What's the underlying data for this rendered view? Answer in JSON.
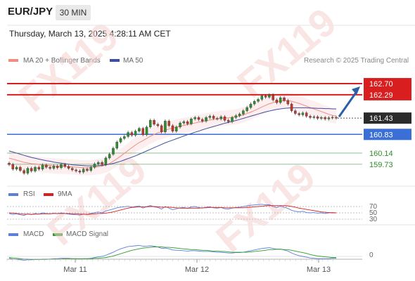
{
  "header": {
    "pair": "EUR/JPY",
    "timeframe": "30 MIN"
  },
  "timestamp": "Thursday, March 13, 2025 4:28:11 AM CET",
  "watermark": "FX119",
  "research_credit": "Research © 2025 Trading Central",
  "legend": {
    "ma": {
      "label": "MA 20 + Bollinger Bands",
      "color": "#f28b82"
    },
    "ma50": {
      "label": "MA 50",
      "color": "#3f4f9f"
    },
    "rsi": {
      "label": "RSI",
      "color": "#5b7fdb"
    },
    "rsi_ma": {
      "label": "9MA",
      "color": "#d92020"
    },
    "macd": {
      "label": "MACD",
      "color": "#5b7fdb"
    },
    "macd_signal": {
      "label": "MACD Signal",
      "color": "#2e9e2e"
    }
  },
  "chart_data": [
    {
      "type": "candlestick",
      "panel": "price",
      "ylim": [
        159.0,
        163.4
      ],
      "x_ticks": [
        "Mar 11",
        "Mar 12",
        "Mar 13"
      ],
      "current_price": 161.43,
      "levels": [
        {
          "value": 162.7,
          "label": "162.70",
          "color": "#d81e1e",
          "kind": "resistance"
        },
        {
          "value": 162.29,
          "label": "162.29",
          "color": "#d81e1e",
          "kind": "resistance"
        },
        {
          "value": 161.43,
          "label": "161.43",
          "color": "#333333",
          "kind": "last"
        },
        {
          "value": 160.83,
          "label": "160.83",
          "color": "#3a6fd8",
          "kind": "pivot"
        },
        {
          "value": 160.14,
          "label": "160.14",
          "color": "#2e8b2e",
          "kind": "support"
        },
        {
          "value": 159.73,
          "label": "159.73",
          "color": "#2e8b2e",
          "kind": "support"
        }
      ],
      "close": [
        159.72,
        159.55,
        159.62,
        159.5,
        159.4,
        159.58,
        159.48,
        159.62,
        159.55,
        159.7,
        159.62,
        159.58,
        159.66,
        159.6,
        159.72,
        159.65,
        159.58,
        159.52,
        159.48,
        159.44,
        159.55,
        159.5,
        159.62,
        159.74,
        159.8,
        159.72,
        159.96,
        160.1,
        160.32,
        160.55,
        160.68,
        160.75,
        160.9,
        160.8,
        160.95,
        161.05,
        160.82,
        161.1,
        161.35,
        161.2,
        161.15,
        160.92,
        161.32,
        161.15,
        160.95,
        161.1,
        161.25,
        161.3,
        161.22,
        161.4,
        161.45,
        161.38,
        161.32,
        161.45,
        161.5,
        161.42,
        161.4,
        161.48,
        161.35,
        161.3,
        161.45,
        161.52,
        161.58,
        161.7,
        161.82,
        161.95,
        162.05,
        162.12,
        162.25,
        162.2,
        162.28,
        162.1,
        162.0,
        162.18,
        162.08,
        161.95,
        161.7,
        161.6,
        161.55,
        161.62,
        161.5,
        161.45,
        161.48,
        161.42,
        161.45,
        161.4,
        161.44,
        161.46,
        161.43
      ],
      "ma20": [
        159.95,
        159.92,
        159.88,
        159.84,
        159.8,
        159.78,
        159.75,
        159.74,
        159.72,
        159.7,
        159.69,
        159.68,
        159.67,
        159.66,
        159.66,
        159.65,
        159.64,
        159.63,
        159.62,
        159.61,
        159.6,
        159.6,
        159.61,
        159.62,
        159.64,
        159.66,
        159.7,
        159.76,
        159.84,
        159.93,
        160.03,
        160.13,
        160.24,
        160.34,
        160.44,
        160.53,
        160.6,
        160.68,
        160.76,
        160.83,
        160.89,
        160.93,
        160.98,
        161.03,
        161.06,
        161.1,
        161.13,
        161.16,
        161.19,
        161.22,
        161.25,
        161.28,
        161.3,
        161.33,
        161.36,
        161.38,
        161.4,
        161.42,
        161.43,
        161.44,
        161.46,
        161.48,
        161.51,
        161.55,
        161.6,
        161.65,
        161.71,
        161.77,
        161.84,
        161.9,
        161.96,
        162.0,
        162.03,
        162.06,
        162.07,
        162.07,
        162.05,
        162.01,
        161.97,
        161.92,
        161.87,
        161.82,
        161.77,
        161.72,
        161.67,
        161.62,
        161.57,
        161.53,
        161.5
      ],
      "ma50": [
        160.22,
        160.18,
        160.14,
        160.1,
        160.06,
        160.02,
        159.98,
        159.95,
        159.92,
        159.89,
        159.86,
        159.84,
        159.81,
        159.79,
        159.77,
        159.75,
        159.73,
        159.71,
        159.7,
        159.69,
        159.68,
        159.67,
        159.67,
        159.67,
        159.68,
        159.69,
        159.71,
        159.73,
        159.76,
        159.8,
        159.84,
        159.89,
        159.94,
        159.99,
        160.04,
        160.1,
        160.16,
        160.22,
        160.28,
        160.34,
        160.4,
        160.46,
        160.52,
        160.57,
        160.62,
        160.67,
        160.72,
        160.77,
        160.82,
        160.86,
        160.91,
        160.95,
        161.0,
        161.04,
        161.08,
        161.12,
        161.16,
        161.2,
        161.24,
        161.27,
        161.31,
        161.34,
        161.38,
        161.42,
        161.46,
        161.5,
        161.54,
        161.58,
        161.62,
        161.66,
        161.69,
        161.72,
        161.75,
        161.77,
        161.79,
        161.8,
        161.81,
        161.81,
        161.81,
        161.81,
        161.81,
        161.8,
        161.8,
        161.79,
        161.79,
        161.78,
        161.78,
        161.77,
        161.77
      ]
    },
    {
      "type": "line",
      "panel": "rsi",
      "levels": [
        70,
        50,
        30
      ],
      "ylim": [
        0,
        100
      ],
      "series": [
        {
          "name": "RSI",
          "values": [
            48,
            45,
            47,
            44,
            42,
            47,
            45,
            48,
            46,
            50,
            48,
            47,
            49,
            47,
            50,
            48,
            46,
            45,
            44,
            43,
            46,
            45,
            48,
            51,
            53,
            50,
            56,
            59,
            62,
            66,
            68,
            69,
            71,
            68,
            70,
            72,
            65,
            70,
            73,
            69,
            67,
            62,
            70,
            65,
            60,
            63,
            66,
            67,
            64,
            69,
            70,
            67,
            65,
            68,
            69,
            66,
            65,
            67,
            63,
            62,
            65,
            67,
            68,
            70,
            72,
            74,
            75,
            76,
            77,
            75,
            76,
            70,
            67,
            71,
            68,
            64,
            58,
            55,
            53,
            55,
            51,
            50,
            51,
            49,
            50,
            48,
            50,
            51,
            50
          ]
        },
        {
          "name": "9MA",
          "values": [
            50,
            49,
            48,
            47,
            46,
            46,
            45,
            46,
            46,
            47,
            47,
            47,
            48,
            48,
            48,
            48,
            48,
            47,
            47,
            46,
            46,
            45,
            46,
            47,
            48,
            48,
            49,
            51,
            53,
            56,
            59,
            62,
            65,
            67,
            68,
            69,
            69,
            69,
            70,
            70,
            69,
            68,
            68,
            68,
            67,
            66,
            65,
            65,
            65,
            65,
            65,
            65,
            66,
            66,
            67,
            67,
            67,
            67,
            66,
            66,
            66,
            66,
            66,
            66,
            67,
            68,
            69,
            70,
            71,
            72,
            73,
            73,
            73,
            73,
            73,
            72,
            70,
            68,
            65,
            63,
            61,
            59,
            57,
            55,
            53,
            52,
            51,
            50,
            50
          ]
        }
      ]
    },
    {
      "type": "line",
      "panel": "macd",
      "zero_label": "0",
      "series": [
        {
          "name": "MACD",
          "values": [
            -0.05,
            -0.07,
            -0.08,
            -0.09,
            -0.1,
            -0.09,
            -0.09,
            -0.08,
            -0.08,
            -0.07,
            -0.07,
            -0.07,
            -0.06,
            -0.06,
            -0.05,
            -0.05,
            -0.05,
            -0.06,
            -0.06,
            -0.07,
            -0.06,
            -0.06,
            -0.05,
            -0.03,
            -0.01,
            0.0,
            0.03,
            0.07,
            0.11,
            0.16,
            0.2,
            0.23,
            0.26,
            0.27,
            0.28,
            0.29,
            0.27,
            0.27,
            0.28,
            0.27,
            0.25,
            0.21,
            0.22,
            0.2,
            0.17,
            0.16,
            0.16,
            0.15,
            0.14,
            0.15,
            0.15,
            0.14,
            0.13,
            0.13,
            0.13,
            0.12,
            0.11,
            0.11,
            0.1,
            0.09,
            0.09,
            0.1,
            0.1,
            0.11,
            0.13,
            0.15,
            0.17,
            0.19,
            0.21,
            0.22,
            0.23,
            0.21,
            0.19,
            0.19,
            0.17,
            0.14,
            0.09,
            0.05,
            0.02,
            0.0,
            -0.02,
            -0.04,
            -0.05,
            -0.06,
            -0.06,
            -0.06,
            -0.06,
            -0.05,
            -0.05
          ]
        },
        {
          "name": "MACD Signal",
          "values": [
            -0.03,
            -0.04,
            -0.05,
            -0.06,
            -0.07,
            -0.07,
            -0.08,
            -0.08,
            -0.08,
            -0.08,
            -0.08,
            -0.07,
            -0.07,
            -0.07,
            -0.07,
            -0.06,
            -0.06,
            -0.06,
            -0.06,
            -0.06,
            -0.06,
            -0.06,
            -0.06,
            -0.05,
            -0.05,
            -0.04,
            -0.03,
            -0.01,
            0.01,
            0.04,
            0.07,
            0.1,
            0.13,
            0.16,
            0.18,
            0.2,
            0.22,
            0.23,
            0.24,
            0.25,
            0.25,
            0.25,
            0.24,
            0.24,
            0.23,
            0.22,
            0.21,
            0.2,
            0.19,
            0.18,
            0.18,
            0.17,
            0.16,
            0.16,
            0.15,
            0.14,
            0.14,
            0.13,
            0.13,
            0.12,
            0.11,
            0.11,
            0.11,
            0.11,
            0.11,
            0.12,
            0.13,
            0.14,
            0.15,
            0.16,
            0.18,
            0.18,
            0.19,
            0.19,
            0.18,
            0.18,
            0.16,
            0.14,
            0.12,
            0.1,
            0.08,
            0.05,
            0.03,
            0.01,
            0.0,
            -0.01,
            -0.02,
            -0.03,
            -0.03
          ]
        }
      ]
    }
  ]
}
